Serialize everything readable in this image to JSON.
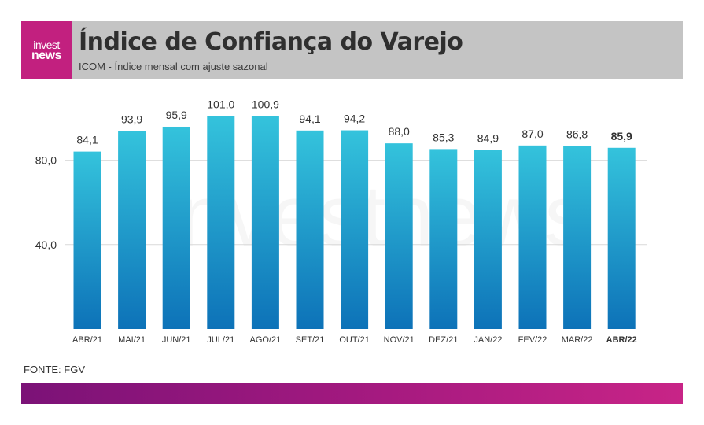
{
  "header": {
    "logo_line1": "invest",
    "logo_line2": "news",
    "title": "Índice de Confiança do Varejo",
    "subtitle": "ICOM - Índice mensal com ajuste sazonal"
  },
  "source": "FONTE: FGV",
  "watermark": "investnews",
  "colors": {
    "bar_top": "#34c3dc",
    "bar_bottom": "#0d72b8",
    "brand_magenta": "#c2207f",
    "footer_start": "#7b1277",
    "footer_end": "#c82487",
    "header_bg": "#c4c4c4"
  },
  "chart_data": {
    "type": "bar",
    "categories": [
      "ABR/21",
      "MAI/21",
      "JUN/21",
      "JUL/21",
      "AGO/21",
      "SET/21",
      "OUT/21",
      "NOV/21",
      "DEZ/21",
      "JAN/22",
      "FEV/22",
      "MAR/22",
      "ABR/22"
    ],
    "values": [
      84.1,
      93.9,
      95.9,
      101.0,
      100.9,
      94.1,
      94.2,
      88.0,
      85.3,
      84.9,
      87.0,
      86.8,
      85.9
    ],
    "value_labels": [
      "84,1",
      "93,9",
      "95,9",
      "101,0",
      "100,9",
      "94,1",
      "94,2",
      "88,0",
      "85,3",
      "84,9",
      "87,0",
      "86,8",
      "85,9"
    ],
    "highlight_index": 12,
    "yticks": [
      40,
      80
    ],
    "ytick_labels": [
      "40,0",
      "80,0"
    ],
    "ylim": [
      0,
      80
    ],
    "grid": true,
    "title": "Índice de Confiança do Varejo",
    "xlabel": "",
    "ylabel": ""
  }
}
